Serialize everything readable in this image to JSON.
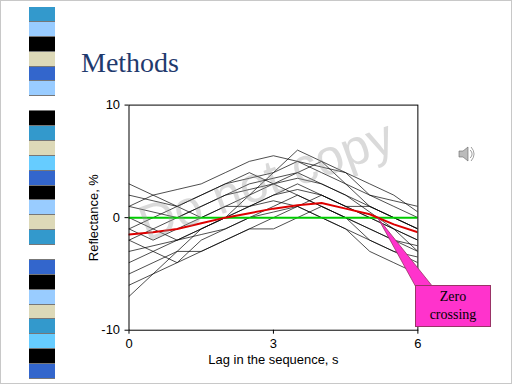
{
  "chart_data": {
    "type": "line",
    "title": "Methods",
    "x_label": "Lag in the sequence, s",
    "y_label": "Reflectance, %",
    "watermark": "Do not copy",
    "x": [
      0,
      0.5,
      1,
      1.5,
      2,
      2.5,
      3,
      3.5,
      4,
      4.5,
      5,
      5.5,
      6
    ],
    "xlim": [
      0,
      6
    ],
    "xticks": [
      0,
      3,
      6
    ],
    "ylim": [
      -10,
      10
    ],
    "yticks": [
      -10,
      0,
      10
    ],
    "series": [
      {
        "color": "#000000",
        "values": [
          -2,
          -1,
          0,
          1,
          2,
          3,
          3.5,
          4,
          3,
          2,
          1,
          0,
          -1
        ]
      },
      {
        "color": "#000000",
        "values": [
          1,
          2,
          2.5,
          3,
          4,
          5,
          5.5,
          5,
          4,
          3,
          2,
          1.5,
          1
        ]
      },
      {
        "color": "#000000",
        "values": [
          -4,
          -3,
          -2,
          -1,
          0,
          1,
          2,
          2.5,
          2,
          1,
          0,
          -1,
          -2
        ]
      },
      {
        "color": "#000000",
        "values": [
          -6,
          -5,
          -4,
          -2,
          -1,
          0,
          1,
          2,
          1,
          0,
          -2,
          -3,
          -4
        ]
      },
      {
        "color": "#000000",
        "values": [
          2,
          1.5,
          1,
          2,
          3,
          4,
          3,
          2,
          1,
          0,
          -1,
          -2,
          -2.5
        ]
      },
      {
        "color": "#000000",
        "values": [
          -1,
          0,
          1,
          2,
          3,
          3.5,
          4,
          5,
          4.5,
          4,
          3,
          2,
          0.5
        ]
      },
      {
        "color": "#000000",
        "values": [
          -3,
          -2.5,
          -2,
          -1.5,
          -1,
          0,
          0.5,
          1,
          0,
          -1,
          -2,
          -3,
          -3.5
        ]
      },
      {
        "color": "#000000",
        "values": [
          -7,
          -5,
          -3,
          -1,
          0,
          1,
          1.5,
          1,
          0,
          -1,
          -3,
          -4,
          -5
        ]
      },
      {
        "color": "#000000",
        "values": [
          0,
          -1,
          -2,
          -1,
          0,
          2,
          3,
          4,
          5,
          4,
          2,
          1,
          0
        ]
      },
      {
        "color": "#000000",
        "values": [
          3,
          2,
          1,
          0,
          1,
          2,
          4,
          6,
          5,
          3,
          1,
          0,
          -1
        ]
      },
      {
        "color": "#000000",
        "values": [
          -2,
          -3,
          -4,
          -3,
          -2,
          -1,
          0,
          1,
          2,
          1,
          0,
          -1,
          -3
        ]
      },
      {
        "color": "#000000",
        "values": [
          1,
          0.5,
          0,
          1,
          2,
          2.5,
          3,
          3.5,
          3,
          2,
          0.5,
          -1,
          -2
        ]
      },
      {
        "color": "#000000",
        "values": [
          -5,
          -4,
          -3,
          -3,
          -2,
          -1,
          -1,
          0,
          1,
          0,
          -1,
          -2,
          -3
        ]
      },
      {
        "color": "#000000",
        "values": [
          -1,
          -2,
          -1,
          0,
          1,
          1,
          2,
          3,
          2,
          1,
          1,
          0,
          -1
        ]
      },
      {
        "color": "#00cc00",
        "values": [
          0,
          0,
          0,
          0,
          0,
          0,
          0,
          0,
          0,
          0,
          0,
          0,
          0
        ]
      },
      {
        "color": "#dd0000",
        "values": [
          -1.5,
          -1.3,
          -1,
          -0.5,
          0,
          0.4,
          0.8,
          1.1,
          1.3,
          0.8,
          0.3,
          -0.6,
          -1.3
        ]
      }
    ],
    "annotations": [
      {
        "text": "Zero crossing",
        "x": 5.15,
        "y": 0
      }
    ]
  }
}
